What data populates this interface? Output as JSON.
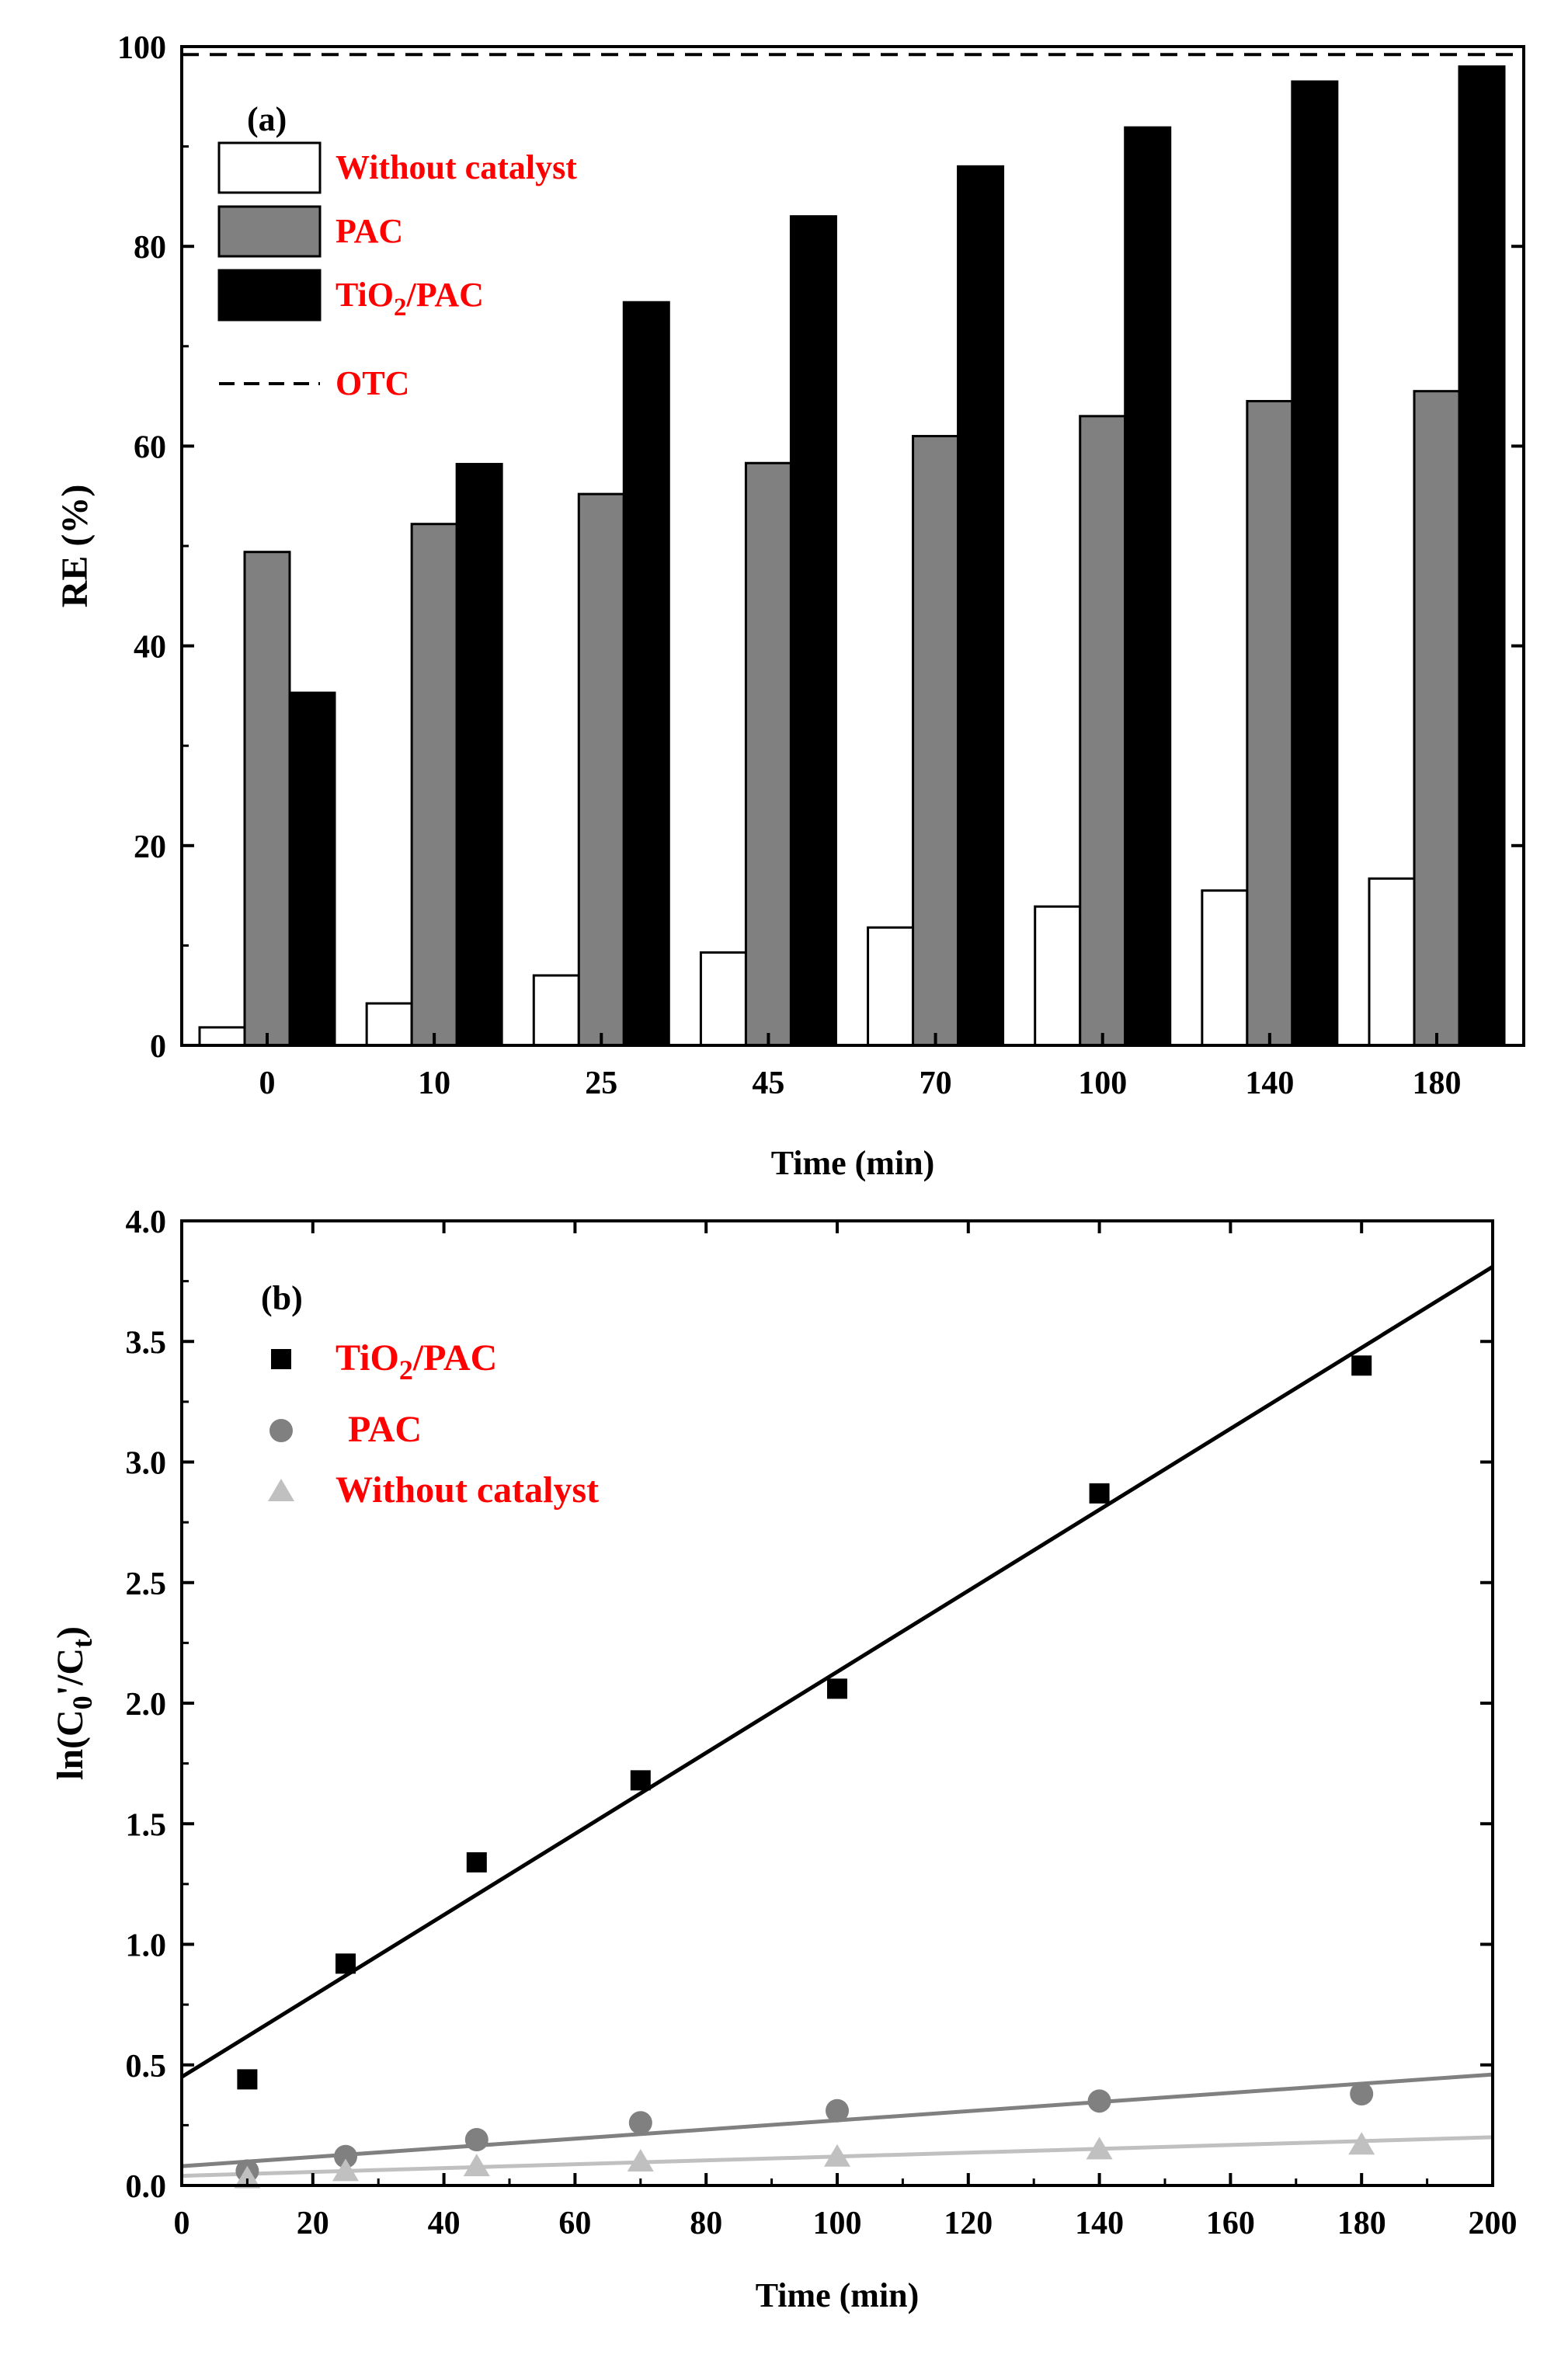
{
  "colors": {
    "without": "#ffffff",
    "pac_bar": "#808080",
    "tio2_bar": "#000000",
    "legend_text": "#ff0000",
    "tio2_line": "#000000",
    "pac_line": "#808080",
    "without_line": "#c0c0c0"
  },
  "chart_data": [
    {
      "type": "bar",
      "panel_label": "(a)",
      "xlabel": "Time (min)",
      "ylabel": "RE (%)",
      "ylim": [
        0,
        100
      ],
      "yticks": [
        "0",
        "20",
        "40",
        "60",
        "80",
        "100"
      ],
      "categories": [
        "0",
        "10",
        "25",
        "45",
        "70",
        "100",
        "140",
        "180"
      ],
      "series": [
        {
          "name": "Without catalyst",
          "color_key": "without",
          "values": [
            1.8,
            4.2,
            7.0,
            9.3,
            11.8,
            13.9,
            15.5,
            16.7
          ]
        },
        {
          "name": "PAC",
          "color_key": "pac_bar",
          "values": [
            49.4,
            52.2,
            55.2,
            58.3,
            61.0,
            63.0,
            64.5,
            65.5
          ]
        },
        {
          "name": "TiO2/PAC",
          "name_base": "TiO",
          "name_sub": "2",
          "name_rest": "/PAC",
          "color_key": "tio2_bar",
          "values": [
            35.3,
            58.2,
            74.4,
            83.0,
            88.0,
            91.9,
            96.5,
            98.0
          ]
        }
      ],
      "reference_line": {
        "name": "OTC",
        "value": 99.2,
        "style": "dashed"
      },
      "legend": "top-left",
      "grid": false
    },
    {
      "type": "scatter",
      "panel_label": "(b)",
      "xlabel": "Time (min)",
      "ylabel_base": "ln(C",
      "ylabel_sub1": "0",
      "ylabel_mid": "'/C",
      "ylabel_sub2": "t",
      "ylabel_end": ")",
      "xlim": [
        0,
        200
      ],
      "ylim": [
        0,
        4.0
      ],
      "xticks": [
        "0",
        "20",
        "40",
        "60",
        "80",
        "100",
        "120",
        "140",
        "160",
        "180",
        "200"
      ],
      "yticks": [
        "0.0",
        "0.5",
        "1.0",
        "1.5",
        "2.0",
        "2.5",
        "3.0",
        "3.5",
        "4.0"
      ],
      "series": [
        {
          "name": "TiO2/PAC",
          "name_base": "TiO",
          "name_sub": "2",
          "name_rest": "/PAC",
          "marker": "square",
          "color_key": "tio2_line",
          "x": [
            10,
            25,
            45,
            70,
            100,
            140,
            180
          ],
          "y": [
            0.44,
            0.92,
            1.34,
            1.68,
            2.06,
            2.87,
            3.4
          ],
          "fit": {
            "intercept": 0.45,
            "slope": 0.0168
          }
        },
        {
          "name": "PAC",
          "marker": "circle",
          "color_key": "pac_line",
          "x": [
            10,
            25,
            45,
            70,
            100,
            140,
            180
          ],
          "y": [
            0.06,
            0.12,
            0.19,
            0.26,
            0.31,
            0.35,
            0.38
          ],
          "fit": {
            "intercept": 0.08,
            "slope": 0.0019
          }
        },
        {
          "name": "Without catalyst",
          "marker": "triangle",
          "color_key": "without_line",
          "x": [
            10,
            25,
            45,
            70,
            100,
            140,
            180
          ],
          "y": [
            0.03,
            0.06,
            0.08,
            0.1,
            0.12,
            0.15,
            0.17
          ],
          "fit": {
            "intercept": 0.04,
            "slope": 0.0008
          }
        }
      ],
      "legend": "top-left",
      "grid": false
    }
  ]
}
